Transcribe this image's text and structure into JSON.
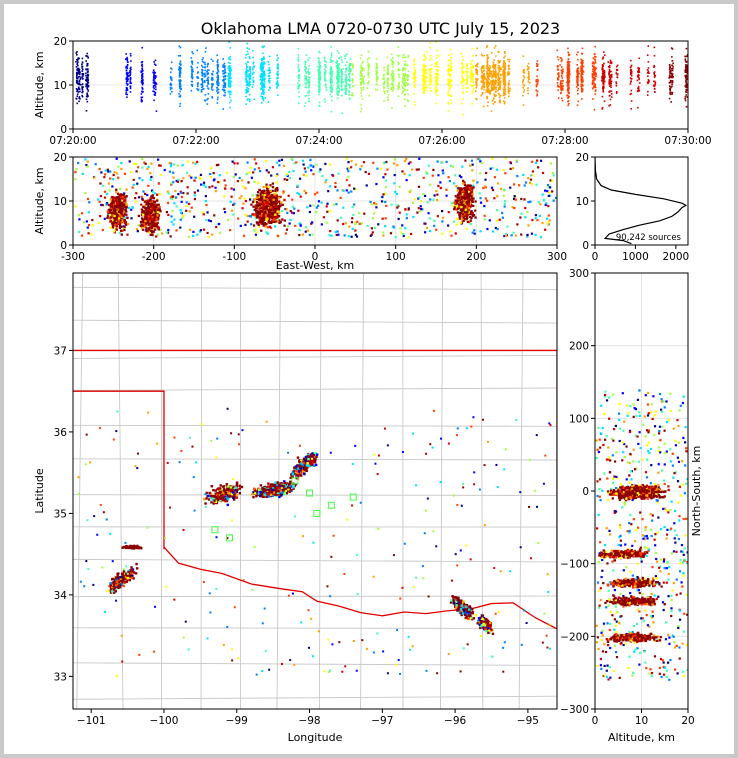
{
  "chart_data": [
    {
      "id": "time_height",
      "type": "scatter",
      "title": "Oklahoma LMA 0720-0730 UTC July 15, 2023",
      "ylabel": "Altitude, km",
      "xlim": [
        "07:20:00",
        "07:30:00"
      ],
      "ylim": [
        0,
        20
      ],
      "x_ticks": [
        "07:20:00",
        "07:22:00",
        "07:24:00",
        "07:26:00",
        "07:28:00",
        "07:30:00"
      ],
      "y_ticks": [
        0,
        10,
        20
      ],
      "color_encoding": "time (blue to dark red)",
      "grid": true
    },
    {
      "id": "ew_height",
      "type": "scatter",
      "xlabel": "East-West, km",
      "ylabel": "Altitude, km",
      "xlim": [
        -300,
        300
      ],
      "ylim": [
        0,
        20
      ],
      "x_ticks": [
        -300,
        -200,
        -100,
        0,
        100,
        200,
        300
      ],
      "y_ticks": [
        0,
        10,
        20
      ],
      "grid": true,
      "clusters_km": [
        {
          "x": -245,
          "z": 8
        },
        {
          "x": -205,
          "z": 7
        },
        {
          "x": -60,
          "z": 9
        },
        {
          "x": 185,
          "z": 10
        }
      ]
    },
    {
      "id": "altitude_histogram",
      "type": "line",
      "annotation": "90,242 sources",
      "xlim": [
        0,
        2300
      ],
      "ylim": [
        0,
        20
      ],
      "x_ticks": [
        0,
        1000,
        2000
      ],
      "y_ticks": [
        0,
        10,
        20
      ],
      "profile": [
        {
          "z": 0.3,
          "n": 900
        },
        {
          "z": 1.0,
          "n": 700
        },
        {
          "z": 1.5,
          "n": 250
        },
        {
          "z": 2.5,
          "n": 350
        },
        {
          "z": 3.5,
          "n": 700
        },
        {
          "z": 4.5,
          "n": 1100
        },
        {
          "z": 5.5,
          "n": 1600
        },
        {
          "z": 6.5,
          "n": 1900
        },
        {
          "z": 7.5,
          "n": 2050
        },
        {
          "z": 8.5,
          "n": 2150
        },
        {
          "z": 9.0,
          "n": 2250
        },
        {
          "z": 9.5,
          "n": 2150
        },
        {
          "z": 10.5,
          "n": 1700
        },
        {
          "z": 11.5,
          "n": 1000
        },
        {
          "z": 12.5,
          "n": 400
        },
        {
          "z": 13.5,
          "n": 150
        },
        {
          "z": 15,
          "n": 40
        },
        {
          "z": 17,
          "n": 10
        },
        {
          "z": 20,
          "n": 0
        }
      ]
    },
    {
      "id": "plan_view",
      "type": "scatter",
      "xlabel": "Longitude",
      "ylabel": "Latitude",
      "xlim": [
        -101.25,
        -94.6
      ],
      "ylim": [
        32.6,
        37.95
      ],
      "x_ticks": [
        -101,
        -100,
        -99,
        -98,
        -97,
        -96,
        -95
      ],
      "y_ticks": [
        33,
        34,
        35,
        36,
        37
      ],
      "clusters": [
        {
          "lon": -98.5,
          "lat": 35.3
        },
        {
          "lon": -98.1,
          "lat": 35.6
        },
        {
          "lon": -100.6,
          "lat": 34.2
        },
        {
          "lon": -100.45,
          "lat": 34.6
        },
        {
          "lon": -95.9,
          "lat": 33.85
        },
        {
          "lon": -95.6,
          "lat": 33.65
        },
        {
          "lon": -99.2,
          "lat": 35.25
        }
      ]
    },
    {
      "id": "ns_height",
      "type": "scatter",
      "xlabel": "Altitude, km",
      "ylabel": "North-South, km",
      "xlim": [
        0,
        20
      ],
      "ylim": [
        -300,
        300
      ],
      "x_ticks": [
        0,
        10,
        20
      ],
      "y_ticks": [
        -300,
        -200,
        -100,
        0,
        100,
        200,
        300
      ],
      "grid": true,
      "clusters_km": [
        {
          "y": 0,
          "z": 9
        },
        {
          "y": -85,
          "z": 6
        },
        {
          "y": -125,
          "z": 8
        },
        {
          "y": -150,
          "z": 8
        },
        {
          "y": -200,
          "z": 8
        }
      ]
    }
  ],
  "colors": {
    "border": "#e00000",
    "county_lines": "#c8c8c8",
    "grid": "#e4e4e4",
    "source_ramp": [
      "#00008b",
      "#0000ff",
      "#0080ff",
      "#00e0ff",
      "#40ffb0",
      "#a0ff40",
      "#ffff00",
      "#ffa000",
      "#ff4000",
      "#d00000",
      "#8b0000"
    ]
  }
}
